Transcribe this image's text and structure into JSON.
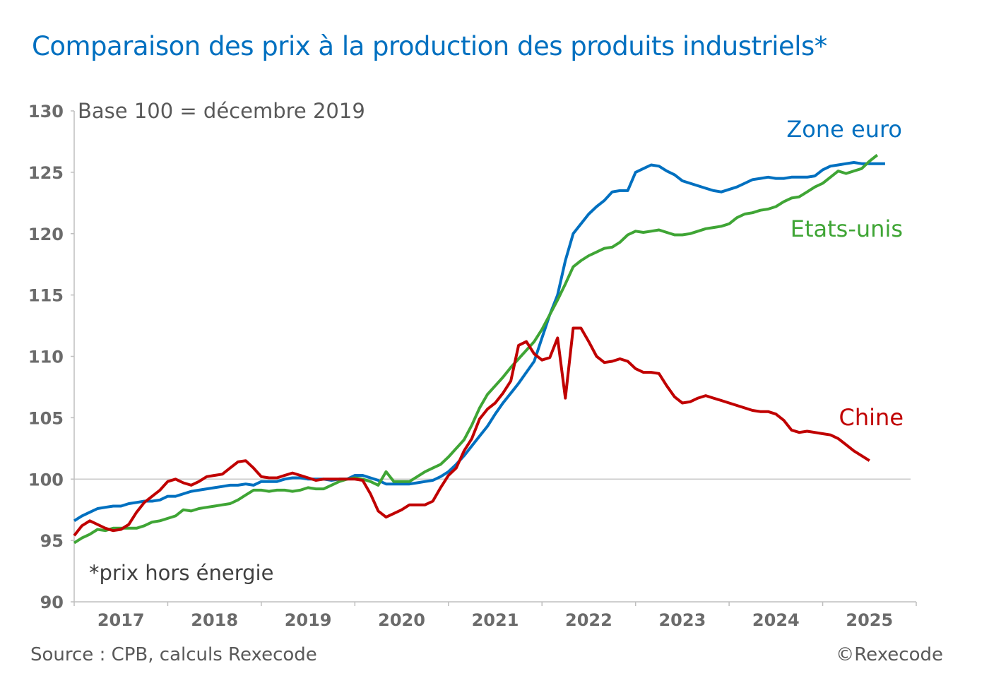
{
  "chart_data": {
    "type": "line",
    "title": "Comparaison des prix à la production des produits industriels*",
    "subtitle": "Base 100 = décembre 2019",
    "note": "*prix hors énergie",
    "source": "Source : CPB, calculs Rexecode",
    "copyright": "©Rexecode",
    "x_start": "2017-01",
    "frequency": "monthly",
    "x_tick_labels": [
      "2017",
      "2018",
      "2019",
      "2020",
      "2021",
      "2022",
      "2023",
      "2024",
      "2025"
    ],
    "y_tick_labels": [
      "90",
      "95",
      "100",
      "105",
      "110",
      "115",
      "120",
      "125",
      "130"
    ],
    "ylim": [
      90,
      130
    ],
    "reference_line": 100,
    "grid": false,
    "legend": "inline labels at right end of lines",
    "series": [
      {
        "name": "Zone euro",
        "color": "#0070c0",
        "values": [
          96.6,
          97.0,
          97.3,
          97.6,
          97.7,
          97.8,
          97.8,
          98.0,
          98.1,
          98.2,
          98.2,
          98.3,
          98.6,
          98.6,
          98.8,
          99.0,
          99.1,
          99.2,
          99.3,
          99.4,
          99.5,
          99.5,
          99.6,
          99.5,
          99.8,
          99.8,
          99.8,
          100.0,
          100.1,
          100.1,
          100.0,
          100.0,
          100.0,
          99.9,
          100.0,
          100.0,
          100.3,
          100.3,
          100.1,
          99.9,
          99.6,
          99.6,
          99.6,
          99.6,
          99.7,
          99.8,
          99.9,
          100.2,
          100.6,
          101.2,
          101.9,
          102.7,
          103.5,
          104.3,
          105.3,
          106.2,
          107.0,
          107.8,
          108.7,
          109.6,
          111.5,
          113.4,
          115.0,
          117.8,
          120.0,
          120.8,
          121.6,
          122.2,
          122.7,
          123.4,
          123.5,
          123.5,
          125.0,
          125.3,
          125.6,
          125.5,
          125.1,
          124.8,
          124.3,
          124.1,
          123.9,
          123.7,
          123.5,
          123.4,
          123.6,
          123.8,
          124.1,
          124.4,
          124.5,
          124.6,
          124.5,
          124.5,
          124.6,
          124.6,
          124.6,
          124.7,
          125.2,
          125.5,
          125.6,
          125.7,
          125.8,
          125.7,
          125.7,
          125.7,
          125.7
        ]
      },
      {
        "name": "Etats-unis",
        "color": "#3fa535",
        "values": [
          94.8,
          95.2,
          95.5,
          95.9,
          95.8,
          96.0,
          96.0,
          96.0,
          96.0,
          96.2,
          96.5,
          96.6,
          96.8,
          97.0,
          97.5,
          97.4,
          97.6,
          97.7,
          97.8,
          97.9,
          98.0,
          98.3,
          98.7,
          99.1,
          99.1,
          99.0,
          99.1,
          99.1,
          99.0,
          99.1,
          99.3,
          99.2,
          99.2,
          99.5,
          99.8,
          100.0,
          100.1,
          100.0,
          99.8,
          99.5,
          100.6,
          99.8,
          99.8,
          99.8,
          100.2,
          100.6,
          100.9,
          101.2,
          101.8,
          102.5,
          103.2,
          104.4,
          105.8,
          106.9,
          107.6,
          108.3,
          109.1,
          109.8,
          110.5,
          111.2,
          112.2,
          113.4,
          114.6,
          115.9,
          117.3,
          117.8,
          118.2,
          118.5,
          118.8,
          118.9,
          119.3,
          119.9,
          120.2,
          120.1,
          120.2,
          120.3,
          120.1,
          119.9,
          119.9,
          120.0,
          120.2,
          120.4,
          120.5,
          120.6,
          120.8,
          121.3,
          121.6,
          121.7,
          121.9,
          122.0,
          122.2,
          122.6,
          122.9,
          123.0,
          123.4,
          123.8,
          124.1,
          124.6,
          125.1,
          124.9,
          125.1,
          125.3,
          125.9,
          126.4
        ]
      },
      {
        "name": "Chine",
        "color": "#c00000",
        "values": [
          95.4,
          96.2,
          96.6,
          96.3,
          96.0,
          95.8,
          95.9,
          96.3,
          97.3,
          98.1,
          98.6,
          99.1,
          99.8,
          100.0,
          99.7,
          99.5,
          99.8,
          100.2,
          100.3,
          100.4,
          100.9,
          101.4,
          101.5,
          100.9,
          100.2,
          100.1,
          100.1,
          100.3,
          100.5,
          100.3,
          100.1,
          99.9,
          100.0,
          100.0,
          100.0,
          100.0,
          100.0,
          99.9,
          98.8,
          97.4,
          96.9,
          97.2,
          97.5,
          97.9,
          97.9,
          97.9,
          98.2,
          99.3,
          100.3,
          100.9,
          102.3,
          103.3,
          104.9,
          105.7,
          106.2,
          107.0,
          108.0,
          110.9,
          111.2,
          110.2,
          109.7,
          109.9,
          111.5,
          106.6,
          112.3,
          112.3,
          111.2,
          110.0,
          109.5,
          109.6,
          109.8,
          109.6,
          109.0,
          108.7,
          108.7,
          108.6,
          107.6,
          106.7,
          106.2,
          106.3,
          106.6,
          106.8,
          106.6,
          106.4,
          106.2,
          106.0,
          105.8,
          105.6,
          105.5,
          105.5,
          105.3,
          104.8,
          104.0,
          103.8,
          103.9,
          103.8,
          103.7,
          103.6,
          103.3,
          102.8,
          102.3,
          101.9,
          101.5
        ]
      }
    ]
  }
}
